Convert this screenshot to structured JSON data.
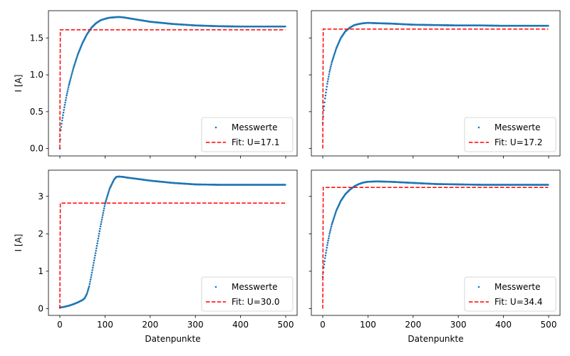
{
  "chart_data": [
    {
      "type": "line",
      "panel": "top-left",
      "xlabel": "",
      "ylabel": "I [A]",
      "xlim": [
        0,
        500
      ],
      "ylim": [
        -0.1,
        1.87
      ],
      "xticks": [
        0,
        100,
        200,
        300,
        400,
        500
      ],
      "yticks": [
        0.0,
        0.5,
        1.0,
        1.5
      ],
      "ytick_labels": [
        "0.0",
        "0.5",
        "1.0",
        "1.5"
      ],
      "show_xtick_labels": false,
      "show_ytick_labels": true,
      "legend_position": "lower right",
      "series": [
        {
          "name": "Messwerte",
          "style": "points",
          "color": "#1f77b4",
          "points": [
            [
              0,
              0.0
            ],
            [
              2,
              0.25
            ],
            [
              5,
              0.38
            ],
            [
              10,
              0.56
            ],
            [
              15,
              0.72
            ],
            [
              20,
              0.86
            ],
            [
              30,
              1.09
            ],
            [
              40,
              1.28
            ],
            [
              50,
              1.43
            ],
            [
              60,
              1.55
            ],
            [
              70,
              1.64
            ],
            [
              80,
              1.7
            ],
            [
              90,
              1.74
            ],
            [
              100,
              1.76
            ],
            [
              110,
              1.775
            ],
            [
              120,
              1.78
            ],
            [
              130,
              1.785
            ],
            [
              140,
              1.78
            ],
            [
              150,
              1.77
            ],
            [
              170,
              1.75
            ],
            [
              200,
              1.72
            ],
            [
              250,
              1.69
            ],
            [
              300,
              1.67
            ],
            [
              350,
              1.66
            ],
            [
              400,
              1.655
            ],
            [
              450,
              1.655
            ],
            [
              499,
              1.655
            ]
          ]
        },
        {
          "name": "Fit: U=17.1",
          "style": "dashed",
          "color": "#ff0000",
          "points": [
            [
              0,
              0.0
            ],
            [
              1,
              1.61
            ],
            [
              499,
              1.61
            ]
          ]
        }
      ]
    },
    {
      "type": "line",
      "panel": "top-right",
      "xlabel": "",
      "ylabel": "",
      "xlim": [
        0,
        500
      ],
      "ylim": [
        -0.1,
        1.87
      ],
      "xticks": [
        0,
        100,
        200,
        300,
        400,
        500
      ],
      "yticks": [
        0.0,
        0.5,
        1.0,
        1.5
      ],
      "ytick_labels": [
        "0.0",
        "0.5",
        "1.0",
        "1.5"
      ],
      "show_xtick_labels": false,
      "show_ytick_labels": false,
      "legend_position": "lower right",
      "series": [
        {
          "name": "Messwerte",
          "style": "points",
          "color": "#1f77b4",
          "points": [
            [
              0,
              0.35
            ],
            [
              2,
              0.52
            ],
            [
              5,
              0.68
            ],
            [
              10,
              0.88
            ],
            [
              15,
              1.04
            ],
            [
              20,
              1.17
            ],
            [
              30,
              1.36
            ],
            [
              40,
              1.5
            ],
            [
              50,
              1.59
            ],
            [
              60,
              1.64
            ],
            [
              70,
              1.675
            ],
            [
              80,
              1.69
            ],
            [
              90,
              1.7
            ],
            [
              100,
              1.705
            ],
            [
              120,
              1.7
            ],
            [
              150,
              1.695
            ],
            [
              200,
              1.68
            ],
            [
              250,
              1.675
            ],
            [
              300,
              1.67
            ],
            [
              350,
              1.67
            ],
            [
              400,
              1.665
            ],
            [
              450,
              1.665
            ],
            [
              499,
              1.665
            ]
          ]
        },
        {
          "name": "Fit: U=17.2",
          "style": "dashed",
          "color": "#ff0000",
          "points": [
            [
              0,
              0.0
            ],
            [
              1,
              1.62
            ],
            [
              499,
              1.62
            ]
          ]
        }
      ]
    },
    {
      "type": "line",
      "panel": "bottom-left",
      "xlabel": "Datenpunkte",
      "ylabel": "I [A]",
      "xlim": [
        0,
        500
      ],
      "ylim": [
        -0.18,
        3.7
      ],
      "xticks": [
        0,
        100,
        200,
        300,
        400,
        500
      ],
      "yticks": [
        0,
        1,
        2,
        3
      ],
      "ytick_labels": [
        "0",
        "1",
        "2",
        "3"
      ],
      "show_xtick_labels": true,
      "show_ytick_labels": true,
      "legend_position": "lower right",
      "series": [
        {
          "name": "Messwerte",
          "style": "points",
          "color": "#1f77b4",
          "points": [
            [
              0,
              0.03
            ],
            [
              10,
              0.05
            ],
            [
              20,
              0.08
            ],
            [
              30,
              0.12
            ],
            [
              40,
              0.17
            ],
            [
              50,
              0.23
            ],
            [
              55,
              0.28
            ],
            [
              60,
              0.4
            ],
            [
              65,
              0.6
            ],
            [
              70,
              0.9
            ],
            [
              80,
              1.55
            ],
            [
              90,
              2.2
            ],
            [
              100,
              2.8
            ],
            [
              110,
              3.2
            ],
            [
              120,
              3.45
            ],
            [
              125,
              3.52
            ],
            [
              130,
              3.53
            ],
            [
              140,
              3.52
            ],
            [
              150,
              3.5
            ],
            [
              170,
              3.47
            ],
            [
              200,
              3.42
            ],
            [
              250,
              3.36
            ],
            [
              300,
              3.32
            ],
            [
              350,
              3.31
            ],
            [
              400,
              3.31
            ],
            [
              450,
              3.31
            ],
            [
              499,
              3.31
            ]
          ]
        },
        {
          "name": "Fit: U=30.0",
          "style": "dashed",
          "color": "#ff0000",
          "points": [
            [
              0,
              0.0
            ],
            [
              1,
              2.82
            ],
            [
              499,
              2.82
            ]
          ]
        }
      ]
    },
    {
      "type": "line",
      "panel": "bottom-right",
      "xlabel": "Datenpunkte",
      "ylabel": "",
      "xlim": [
        0,
        500
      ],
      "ylim": [
        -0.18,
        3.7
      ],
      "xticks": [
        0,
        100,
        200,
        300,
        400,
        500
      ],
      "yticks": [
        0,
        1,
        2,
        3
      ],
      "ytick_labels": [
        "0",
        "1",
        "2",
        "3"
      ],
      "show_xtick_labels": true,
      "show_ytick_labels": false,
      "legend_position": "lower right",
      "series": [
        {
          "name": "Messwerte",
          "style": "points",
          "color": "#1f77b4",
          "points": [
            [
              0,
              0.85
            ],
            [
              2,
              1.1
            ],
            [
              5,
              1.35
            ],
            [
              10,
              1.7
            ],
            [
              15,
              2.0
            ],
            [
              20,
              2.25
            ],
            [
              30,
              2.62
            ],
            [
              40,
              2.88
            ],
            [
              50,
              3.06
            ],
            [
              60,
              3.18
            ],
            [
              70,
              3.27
            ],
            [
              80,
              3.33
            ],
            [
              90,
              3.37
            ],
            [
              100,
              3.39
            ],
            [
              120,
              3.4
            ],
            [
              150,
              3.39
            ],
            [
              200,
              3.36
            ],
            [
              250,
              3.33
            ],
            [
              300,
              3.32
            ],
            [
              350,
              3.31
            ],
            [
              400,
              3.31
            ],
            [
              450,
              3.31
            ],
            [
              499,
              3.31
            ]
          ]
        },
        {
          "name": "Fit: U=34.4",
          "style": "dashed",
          "color": "#ff0000",
          "points": [
            [
              0,
              0.0
            ],
            [
              1,
              3.24
            ],
            [
              499,
              3.24
            ]
          ]
        }
      ]
    }
  ]
}
